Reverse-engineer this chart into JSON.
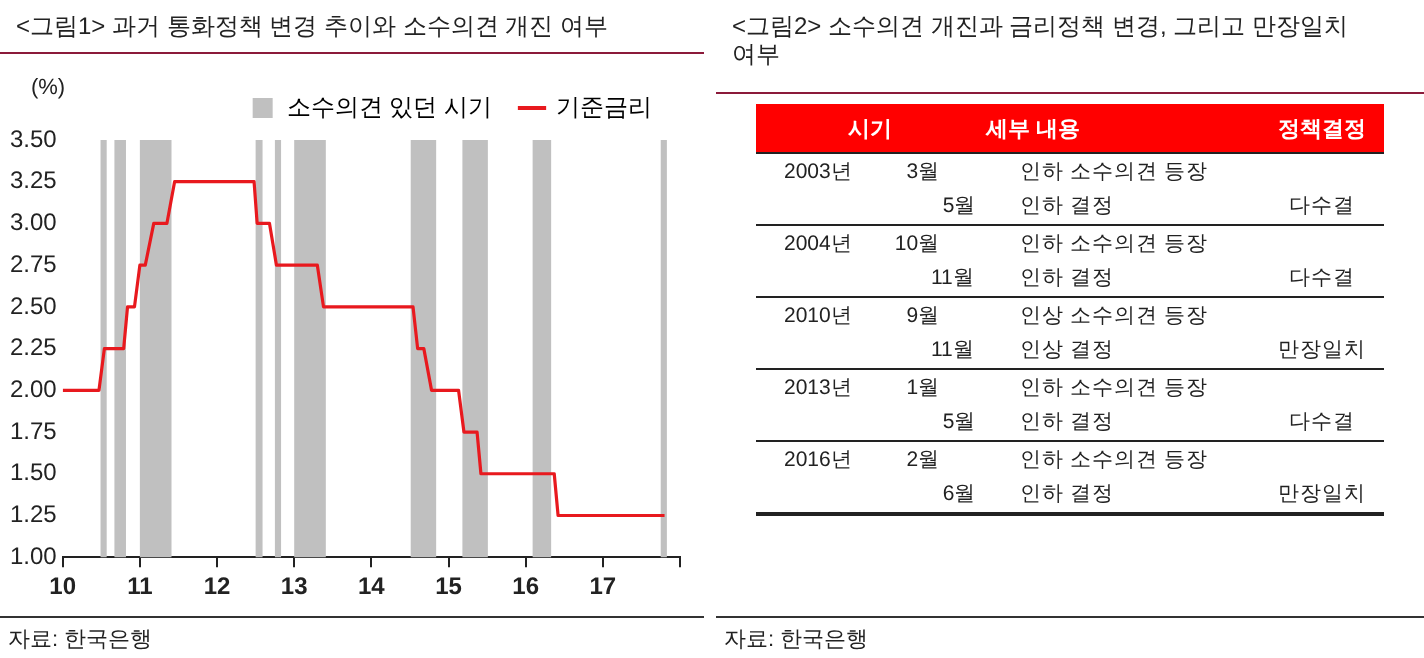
{
  "chart_data": [
    {
      "type": "line",
      "title": "<그림1>  과거 통화정책 변경 추이와 소수의견 개진 여부",
      "ylabel": "(%)",
      "legend": "top",
      "xlim": [
        10,
        18
      ],
      "xticks": [
        10,
        11,
        12,
        13,
        14,
        15,
        16,
        17,
        {
          "value": 18,
          "label": null
        }
      ],
      "ylim": [
        1,
        3.5
      ],
      "yticks": [
        {
          "value": 1,
          "label": "1.00"
        },
        {
          "value": 1.25,
          "label": "1.25"
        },
        {
          "value": 1.5,
          "label": "1.50"
        },
        {
          "value": 1.75,
          "label": "1.75"
        },
        {
          "value": 2,
          "label": "2.00"
        },
        {
          "value": 2.25,
          "label": "2.25"
        },
        {
          "value": 2.5,
          "label": "2.50"
        },
        {
          "value": 2.75,
          "label": "2.75"
        },
        {
          "value": 3,
          "label": "3.00"
        },
        {
          "value": 3.25,
          "label": "3.25"
        },
        {
          "value": 3.5,
          "label": "3.50"
        }
      ],
      "series": [
        {
          "name": "기준금리",
          "color": "#e8191e",
          "x": [
            10,
            10.47,
            10.54,
            10.79,
            10.84,
            10.93,
            11.0,
            11.07,
            11.18,
            11.35,
            11.45,
            12.48,
            12.52,
            12.68,
            12.77,
            13.3,
            13.38,
            14.54,
            14.6,
            14.68,
            14.78,
            15.13,
            15.2,
            15.37,
            15.42,
            16.37,
            16.42,
            17.8
          ],
          "values": [
            2,
            2,
            2.25,
            2.25,
            2.5,
            2.5,
            2.75,
            2.75,
            3,
            3,
            3.25,
            3.25,
            3,
            3,
            2.75,
            2.75,
            2.5,
            2.5,
            2.25,
            2.25,
            2,
            2,
            1.75,
            1.75,
            1.5,
            1.5,
            1.25,
            1.25
          ]
        }
      ],
      "bands": [
        {
          "axis": "x",
          "from": 10.49,
          "to": 10.57,
          "label": "소수의견 있던 시기",
          "color": "#c0c0c0"
        },
        {
          "axis": "x",
          "from": 10.67,
          "to": 10.82,
          "color": "#c0c0c0"
        },
        {
          "axis": "x",
          "from": 11.0,
          "to": 11.41,
          "color": "#c0c0c0"
        },
        {
          "axis": "x",
          "from": 12.5,
          "to": 12.59,
          "color": "#c0c0c0"
        },
        {
          "axis": "x",
          "from": 12.75,
          "to": 12.83,
          "color": "#c0c0c0"
        },
        {
          "axis": "x",
          "from": 13.0,
          "to": 13.41,
          "color": "#c0c0c0"
        },
        {
          "axis": "x",
          "from": 14.51,
          "to": 14.84,
          "color": "#c0c0c0"
        },
        {
          "axis": "x",
          "from": 15.18,
          "to": 15.51,
          "color": "#c0c0c0"
        },
        {
          "axis": "x",
          "from": 16.09,
          "to": 16.33,
          "color": "#c0c0c0"
        },
        {
          "axis": "x",
          "from": 17.75,
          "to": 17.83,
          "color": "#c0c0c0"
        }
      ],
      "annotations": [
        "자료: 한국은행"
      ]
    },
    {
      "type": "other",
      "title": "<그림2>  소수의견 개진과 금리정책 변경, 그리고 만장일치 여부",
      "categories": [
        "시기",
        null,
        "세부 내용",
        "정책결정"
      ],
      "cells": [
        [
          "2003년",
          "3월",
          "인하 소수의견 등장",
          null
        ],
        [
          null,
          "5월",
          "인하 결정",
          "다수결"
        ],
        [
          "2004년",
          "10월",
          "인하 소수의견 등장",
          null
        ],
        [
          null,
          "11월",
          "인하 결정",
          "다수결"
        ],
        [
          "2010년",
          "9월",
          "인상 소수의견 등장",
          null
        ],
        [
          null,
          "11월",
          "인상 결정",
          "만장일치"
        ],
        [
          "2013년",
          "1월",
          "인하 소수의견 등장",
          null
        ],
        [
          null,
          "5월",
          "인하 결정",
          "다수결"
        ],
        [
          "2016년",
          "2월",
          "인하 소수의견 등장",
          null
        ],
        [
          null,
          "6월",
          "인하 결정",
          "만장일치"
        ]
      ],
      "annotations": [
        "자료: 한국은행"
      ]
    }
  ]
}
